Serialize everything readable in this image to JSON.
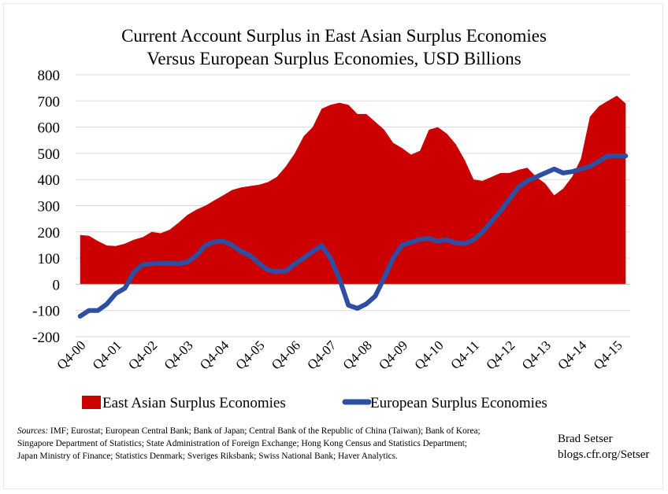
{
  "chart_data": {
    "type": "area",
    "title": "Current Account Surplus in East Asian Surplus Economies",
    "subtitle": "Versus European Surplus Economies, USD Billions",
    "xlabel": "",
    "ylabel": "",
    "ylim": [
      -200,
      800
    ],
    "yticks": [
      "800",
      "700",
      "600",
      "500",
      "400",
      "300",
      "200",
      "100",
      "0",
      "-100",
      "-200"
    ],
    "ytick_values": [
      800,
      700,
      600,
      500,
      400,
      300,
      200,
      100,
      0,
      -100,
      -200
    ],
    "x_tick_labels": [
      "Q4-00",
      "Q4-01",
      "Q4-02",
      "Q4-03",
      "Q4-04",
      "Q4-05",
      "Q4-06",
      "Q4-07",
      "Q4-08",
      "Q4-09",
      "Q4-10",
      "Q4-11",
      "Q4-12",
      "Q4-13",
      "Q4-14",
      "Q4-15"
    ],
    "grid": true,
    "legend_position": "bottom",
    "series": [
      {
        "name": "East Asian Surplus Economies",
        "kind": "area",
        "color": "#cc0000",
        "values": [
          188,
          185,
          165,
          148,
          146,
          155,
          170,
          180,
          200,
          195,
          208,
          235,
          265,
          285,
          300,
          320,
          340,
          360,
          370,
          375,
          380,
          390,
          410,
          450,
          500,
          565,
          600,
          670,
          685,
          693,
          685,
          650,
          650,
          620,
          590,
          540,
          520,
          495,
          510,
          590,
          600,
          575,
          535,
          475,
          400,
          395,
          410,
          425,
          425,
          437,
          445,
          410,
          385,
          340,
          365,
          410,
          480,
          640,
          680,
          700,
          720,
          690
        ]
      },
      {
        "name": "European Surplus Economies",
        "kind": "line",
        "color": "#2e4fa1",
        "values": [
          -122,
          -100,
          -100,
          -75,
          -35,
          -15,
          45,
          75,
          78,
          80,
          80,
          78,
          85,
          110,
          148,
          162,
          165,
          150,
          125,
          110,
          80,
          55,
          48,
          50,
          78,
          100,
          125,
          148,
          100,
          20,
          -80,
          -92,
          -75,
          -45,
          25,
          100,
          150,
          160,
          172,
          175,
          165,
          170,
          158,
          155,
          170,
          200,
          240,
          280,
          325,
          370,
          395,
          410,
          425,
          440,
          425,
          430,
          440,
          450,
          470,
          490,
          490,
          490
        ]
      }
    ]
  },
  "footer": {
    "sources_label": "Sources:",
    "sources_line1": " IMF; Eurostat; European Central Bank; Bank of Japan; Central Bank of the Republic of China (Taiwan); Bank of Korea;",
    "sources_line2": "Singapore Department of Statistics; State Administration of Foreign Exchange;  Hong Kong Census and Statistics Department;",
    "sources_line3": "Japan Ministry of Finance; Statistics Denmark;  Sveriges Riksbank;  Swiss National Bank; Haver Analytics.",
    "credit_name": "Brad Setser",
    "credit_url": "blogs.cfr.org/Setser"
  }
}
